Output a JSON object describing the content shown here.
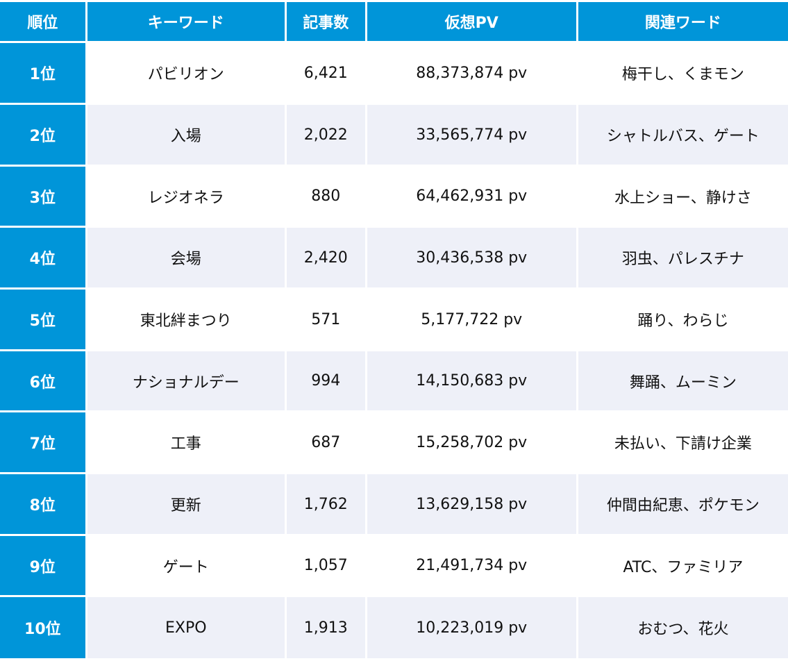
{
  "colors": {
    "accent": "#0095d9",
    "stripe": "#eef0f8",
    "header_text": "#ffffff",
    "body_text": "#111111"
  },
  "table": {
    "headers": [
      "順位",
      "キーワード",
      "記事数",
      "仮想PV",
      "関連ワード"
    ],
    "rows": [
      {
        "rank": "1位",
        "keyword": "パビリオン",
        "articles": "6,421",
        "pv": "88,373,874 pv",
        "related": "梅干し、くまモン"
      },
      {
        "rank": "2位",
        "keyword": "入場",
        "articles": "2,022",
        "pv": "33,565,774 pv",
        "related": "シャトルバス、ゲート"
      },
      {
        "rank": "3位",
        "keyword": "レジオネラ",
        "articles": "880",
        "pv": "64,462,931 pv",
        "related": "水上ショー、静けさ"
      },
      {
        "rank": "4位",
        "keyword": "会場",
        "articles": "2,420",
        "pv": "30,436,538 pv",
        "related": "羽虫、パレスチナ"
      },
      {
        "rank": "5位",
        "keyword": "東北絆まつり",
        "articles": "571",
        "pv": "5,177,722 pv",
        "related": "踊り、わらじ"
      },
      {
        "rank": "6位",
        "keyword": "ナショナルデー",
        "articles": "994",
        "pv": "14,150,683 pv",
        "related": "舞踊、ムーミン"
      },
      {
        "rank": "7位",
        "keyword": "工事",
        "articles": "687",
        "pv": "15,258,702 pv",
        "related": "未払い、下請け企業"
      },
      {
        "rank": "8位",
        "keyword": "更新",
        "articles": "1,762",
        "pv": "13,629,158 pv",
        "related": "仲間由紀恵、ポケモン"
      },
      {
        "rank": "9位",
        "keyword": "ゲート",
        "articles": "1,057",
        "pv": "21,491,734 pv",
        "related": "ATC、ファミリア"
      },
      {
        "rank": "10位",
        "keyword": "EXPO",
        "articles": "1,913",
        "pv": "10,223,019 pv",
        "related": "おむつ、花火"
      }
    ]
  }
}
